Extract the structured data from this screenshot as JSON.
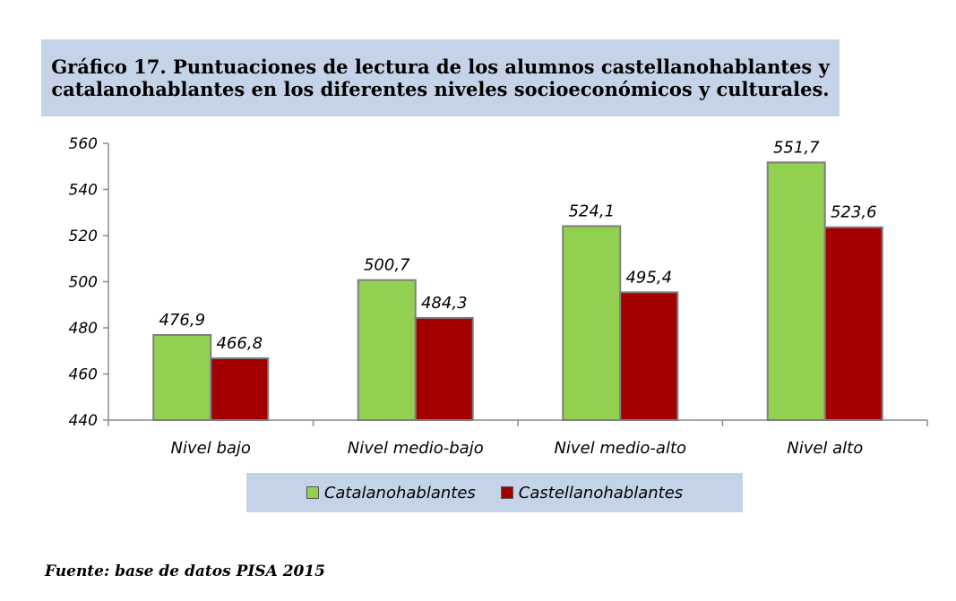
{
  "title": "Gráfico 17. Puntuaciones de lectura de los alumnos castellanohablantes y catalanohablantes en los diferentes niveles socioeconómicos y culturales.",
  "source": "Fuente: base de datos PISA 2015",
  "chart_data": {
    "type": "bar",
    "title": "Gráfico 17. Puntuaciones de lectura de los alumnos castellanohablantes y catalanohablantes en los diferentes niveles socioeconómicos y culturales.",
    "categories": [
      "Nivel bajo",
      "Nivel medio-bajo",
      "Nivel medio-alto",
      "Nivel alto"
    ],
    "series": [
      {
        "name": "Catalanohablantes",
        "color": "#92d050",
        "values": [
          476.9,
          500.7,
          524.1,
          551.7
        ],
        "labels": [
          "476,9",
          "500,7",
          "524,1",
          "551,7"
        ]
      },
      {
        "name": "Castellanohablantes",
        "color": "#a50000",
        "values": [
          466.8,
          484.3,
          495.4,
          523.6
        ],
        "labels": [
          "466,8",
          "484,3",
          "495,4",
          "523,6"
        ]
      }
    ],
    "ylim": [
      440,
      560
    ],
    "yticks": [
      440,
      460,
      480,
      500,
      520,
      540,
      560
    ],
    "xlabel": "",
    "ylabel": "",
    "grid": false,
    "legend": "bottom"
  }
}
